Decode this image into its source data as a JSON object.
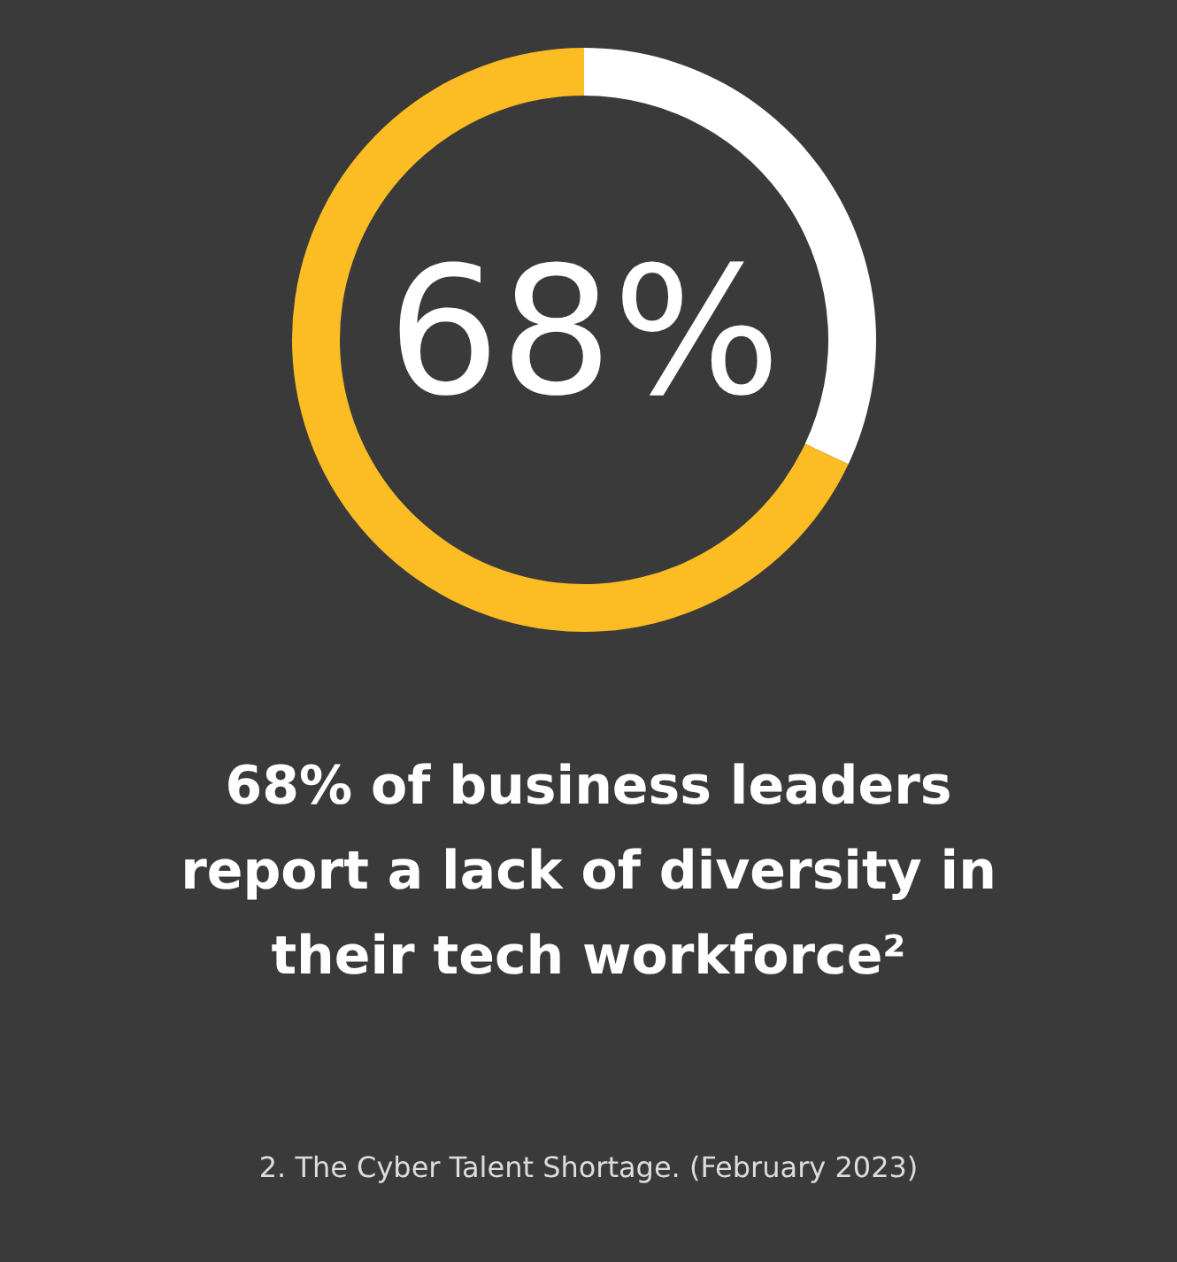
{
  "chart_data": {
    "type": "donut",
    "title": "68% of business leaders report a lack of diversity in their tech workforce²",
    "categories": [
      null,
      null
    ],
    "values": [
      32,
      68
    ],
    "colors": [
      "#ffffff",
      "#fbbd23"
    ],
    "annotations": [
      "68%",
      "2. The Cyber Talent Shortage. (February 2023)"
    ]
  }
}
